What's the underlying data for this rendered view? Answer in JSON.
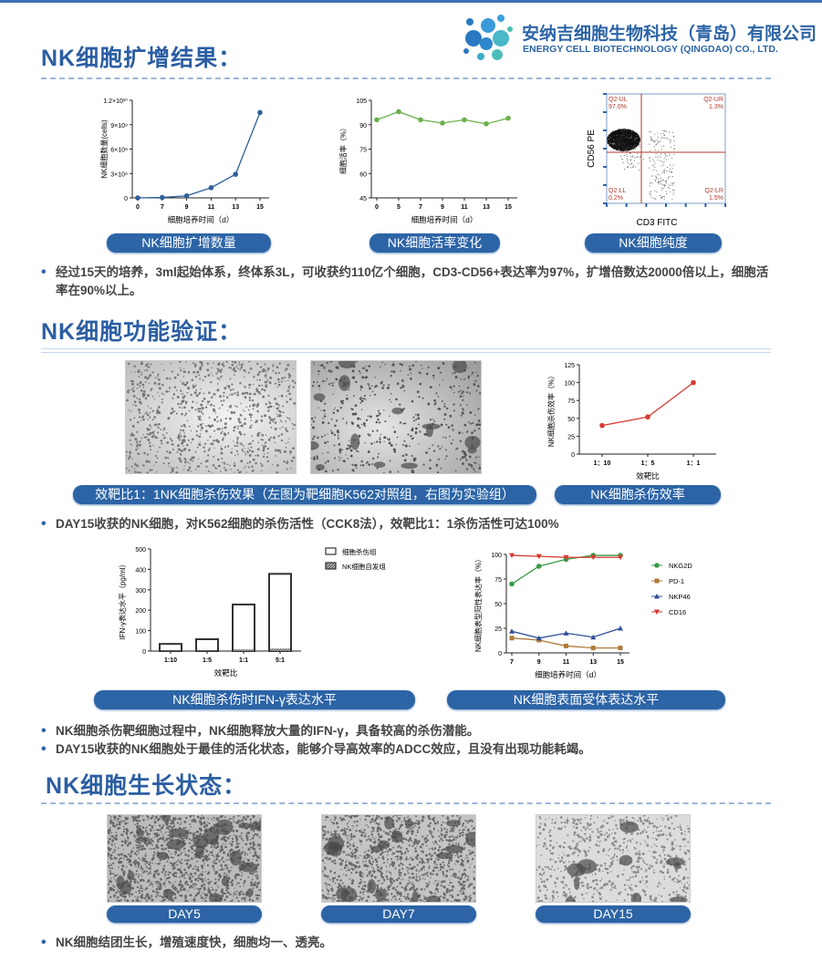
{
  "company": {
    "name_cn": "安纳吉细胞生物科技（青岛）有限公司",
    "name_en": "ENERGY  CELL BIOTECHNOLOGY (QINGDAO) CO., LTD."
  },
  "colors": {
    "brand": "#2c5ea3",
    "pill": "#2c64a6",
    "green": "#6ab04c",
    "red": "#d63a2f"
  },
  "sections": [
    {
      "title": "NK细胞扩增结果：",
      "captions": [
        "NK细胞扩增数量",
        "NK细胞活率变化",
        "NK细胞纯度"
      ],
      "bullets": [
        "经过15天的培养，3ml起始体系，终体系3L，可收获约110亿个细胞，CD3-CD56+表达率为97%，扩增倍数达20000倍以上，细胞活率在90%以上。"
      ]
    },
    {
      "title": "NK细胞功能验证：",
      "captions": [
        "效靶比1：1NK细胞杀伤效果（左图为靶细胞K562对照组，右图为实验组）",
        "NK细胞杀伤效率",
        "NK细胞杀伤时IFN-γ表达水平",
        "NK细胞表面受体表达水平"
      ],
      "bullets": [
        "DAY15收获的NK细胞，对K562细胞的杀伤活性（CCK8法），效靶比1：1杀伤活性可达100%",
        "NK细胞杀伤靶细胞过程中，NK细胞释放大量的IFN-γ，具备较高的杀伤潜能。",
        "DAY15收获的NK细胞处于最佳的活化状态，能够介导高效率的ADCC效应，且没有出现功能耗竭。"
      ]
    },
    {
      "title": "NK细胞生长状态：",
      "captions": [
        "DAY5",
        "DAY7",
        "DAY15"
      ],
      "bullets": [
        "NK细胞结团生长，增殖速度快，细胞均一、透亮。"
      ]
    }
  ],
  "chart_data": [
    {
      "id": "expansion",
      "type": "line",
      "x": [
        0,
        7,
        9,
        11,
        13,
        15
      ],
      "series": [
        {
          "values": [
            0,
            50000000,
            250000000,
            1250000000,
            2900000000,
            10500000000
          ],
          "color": "#2f5f9a"
        }
      ],
      "xlabel": "细胞培养时间（d）",
      "ylabel": "NK细胞数量(cells)",
      "ylim": [
        0,
        12000000000
      ],
      "yticks": [
        0,
        3000000000,
        6000000000,
        9000000000,
        12000000000
      ],
      "ytick_labels": [
        "0",
        "3×10⁹",
        "6×10⁹",
        "9×10⁹",
        "1.2×10¹⁰"
      ],
      "xtick_labels": [
        "0",
        "7",
        "9",
        "11",
        "13",
        "15"
      ]
    },
    {
      "id": "viability",
      "type": "line",
      "x": [
        0,
        5,
        7,
        9,
        11,
        13,
        15
      ],
      "series": [
        {
          "values": [
            93,
            98,
            93,
            91,
            93,
            90.5,
            94
          ],
          "color": "#6ab04c"
        }
      ],
      "xlabel": "细胞培养时间（d）",
      "ylabel": "细胞活率（%）",
      "ylim": [
        45,
        105
      ],
      "yticks": [
        45,
        60,
        75,
        90,
        105
      ],
      "ytick_labels": [
        "45",
        "60",
        "75",
        "90",
        "105"
      ],
      "xtick_labels": [
        "0",
        "5",
        "7",
        "9",
        "11",
        "13",
        "15"
      ]
    },
    {
      "id": "purity",
      "type": "scatter",
      "xlabel": "CD3 FITC",
      "ylabel": "CD56 PE",
      "quadrants": [
        {
          "name": "Q2-UL",
          "value": "97.0%"
        },
        {
          "name": "Q2-UR",
          "value": "1.3%"
        },
        {
          "name": "Q2-LL",
          "value": "0.2%"
        },
        {
          "name": "Q2-LR",
          "value": "1.5%"
        }
      ],
      "color": "#b03a2e"
    },
    {
      "id": "killing",
      "type": "line",
      "categories": [
        "1：10",
        "1：5",
        "1：1"
      ],
      "series": [
        {
          "values": [
            40,
            52,
            100
          ],
          "color": "#d63a2f"
        }
      ],
      "xlabel": "效靶比",
      "ylabel": "NK细胞杀伤效率（%）",
      "ylim": [
        0,
        125
      ],
      "yticks": [
        0,
        25,
        50,
        75,
        100,
        125
      ],
      "ytick_labels": [
        "0",
        "25",
        "50",
        "75",
        "100",
        "125"
      ]
    },
    {
      "id": "ifn",
      "type": "bar",
      "categories": [
        "1:10",
        "1:5",
        "1:1",
        "5:1"
      ],
      "series": [
        {
          "name": "细胞杀伤组",
          "values": [
            35,
            58,
            228,
            378
          ]
        },
        {
          "name": "NK细胞自发组",
          "values": [
            2,
            2,
            8,
            12
          ]
        }
      ],
      "xlabel": "效靶比",
      "ylabel": "IFN-γ表达水平（pg/ml）",
      "ylim": [
        0,
        500
      ],
      "yticks": [
        0,
        100,
        200,
        300,
        400,
        500
      ],
      "ytick_labels": [
        "0",
        "100",
        "200",
        "300",
        "400",
        "500"
      ],
      "legend": "top-right"
    },
    {
      "id": "receptors",
      "type": "line",
      "x": [
        7,
        9,
        11,
        13,
        15
      ],
      "series": [
        {
          "name": "NKG2D",
          "values": [
            70,
            88,
            95,
            99,
            99
          ],
          "color": "#3a9a47",
          "marker": "circle"
        },
        {
          "name": "PD-1",
          "values": [
            15,
            13,
            7,
            5,
            5
          ],
          "color": "#b07a3a",
          "marker": "square"
        },
        {
          "name": "NKP46",
          "values": [
            22,
            15,
            20,
            16,
            25
          ],
          "color": "#2f4f9a",
          "marker": "triangle"
        },
        {
          "name": "CD16",
          "values": [
            99,
            98,
            97,
            97,
            97
          ],
          "color": "#d63a2f",
          "marker": "triangle-down"
        }
      ],
      "xlabel": "细胞培养时间（d）",
      "ylabel": "NK细胞表型阳性表达率（%）",
      "ylim": [
        0,
        100
      ],
      "yticks": [
        0,
        25,
        50,
        75,
        100
      ],
      "ytick_labels": [
        "0",
        "25",
        "50",
        "75",
        "100"
      ],
      "xtick_labels": [
        "7",
        "9",
        "11",
        "13",
        "15"
      ],
      "legend": "right"
    }
  ]
}
